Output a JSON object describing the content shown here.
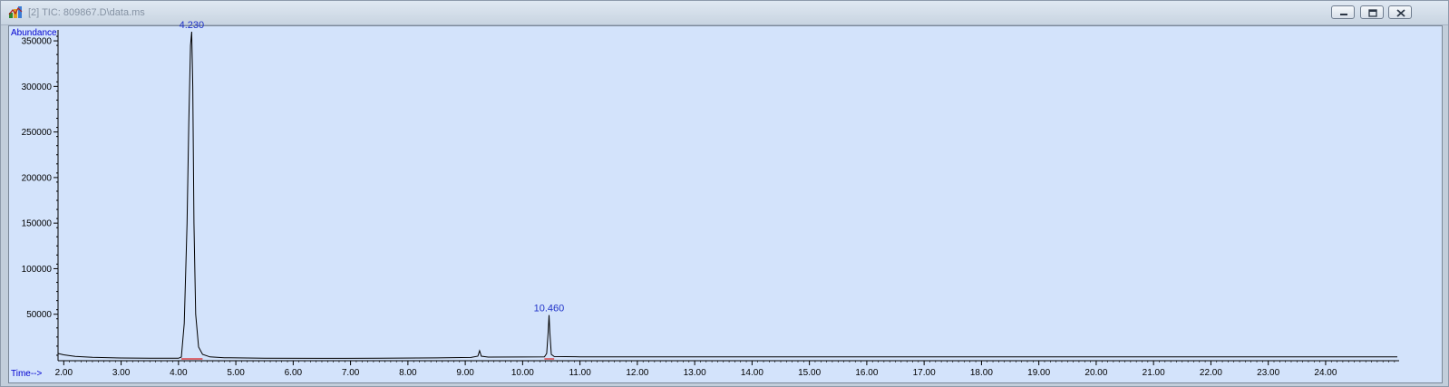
{
  "window": {
    "title": "[2] TIC: 809867.D\\data.ms",
    "icon": "chromatogram-app-icon",
    "buttons": [
      {
        "name": "minimize-button",
        "icon": "minimize-icon"
      },
      {
        "name": "restore-button",
        "icon": "restore-icon"
      },
      {
        "name": "close-button",
        "icon": "close-icon"
      }
    ]
  },
  "colors": {
    "plot_background": "#d3e3fb",
    "trace": "#000000",
    "baseline_marker": "#e02020",
    "axis_title": "#0000d0",
    "peak_label": "#2033c8"
  },
  "chart_data": {
    "type": "line",
    "title": "",
    "xlabel": "Time-->",
    "ylabel": "Abundance",
    "xlim": [
      1.9,
      25.25
    ],
    "ylim": [
      0,
      362000
    ],
    "x_ticks": [
      "2.00",
      "3.00",
      "4.00",
      "5.00",
      "6.00",
      "7.00",
      "8.00",
      "9.00",
      "10.00",
      "11.00",
      "12.00",
      "13.00",
      "14.00",
      "15.00",
      "16.00",
      "17.00",
      "18.00",
      "19.00",
      "20.00",
      "21.00",
      "22.00",
      "23.00",
      "24.00"
    ],
    "y_ticks": [
      "50000",
      "100000",
      "150000",
      "200000",
      "250000",
      "300000",
      "350000"
    ],
    "grid": false,
    "series": [
      {
        "x": [
          1.9,
          2.0,
          2.2,
          2.5,
          3.0,
          3.5,
          4.0,
          4.05,
          4.1,
          4.15,
          4.18,
          4.21,
          4.23,
          4.25,
          4.27,
          4.3,
          4.35,
          4.42,
          4.55,
          4.8,
          5.5,
          6.5,
          7.5,
          8.5,
          9.1,
          9.22,
          9.25,
          9.28,
          9.4,
          10.0,
          10.38,
          10.42,
          10.445,
          10.46,
          10.475,
          10.5,
          10.55,
          11.0,
          13.0,
          16.0,
          19.0,
          22.0,
          25.25
        ],
        "y": [
          7000,
          5500,
          3800,
          2700,
          2000,
          1800,
          1700,
          3000,
          40000,
          150000,
          260000,
          345000,
          360000,
          300000,
          150000,
          50000,
          14000,
          6000,
          3200,
          2300,
          1700,
          1600,
          1800,
          2100,
          2600,
          4000,
          10000,
          4000,
          3000,
          3100,
          3200,
          7000,
          30000,
          49000,
          30000,
          6000,
          3600,
          3300,
          3300,
          3300,
          3300,
          3300,
          3300
        ]
      }
    ],
    "annotations": [
      {
        "text": "4.230",
        "x": 4.23,
        "y": 360000
      },
      {
        "text": "10.460",
        "x": 10.46,
        "y": 49000
      }
    ],
    "baseline_markers": [
      {
        "x_start": 4.05,
        "x_end": 4.42
      },
      {
        "x_start": 10.38,
        "x_end": 10.55
      }
    ]
  }
}
